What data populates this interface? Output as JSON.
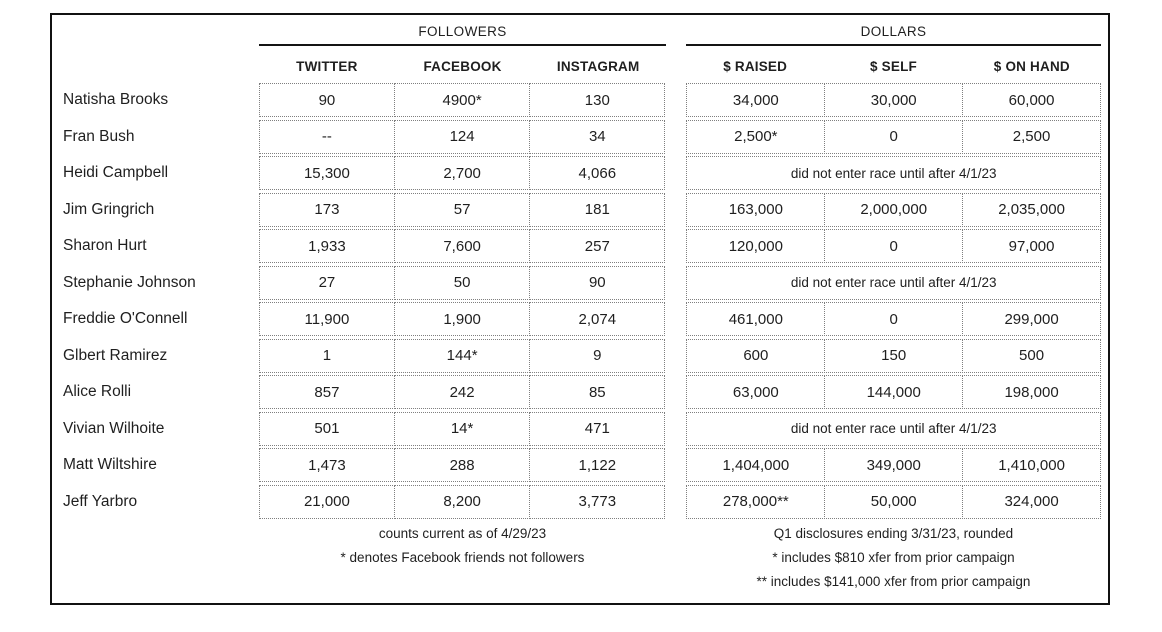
{
  "table": {
    "groups": {
      "followers": "FOLLOWERS",
      "dollars": "DOLLARS"
    },
    "columns": {
      "twitter": "TWITTER",
      "facebook": "FACEBOOK",
      "instagram": "INSTAGRAM",
      "raised": "$ RAISED",
      "self": "$ SELF",
      "on_hand": "$ ON HAND"
    },
    "rows": [
      {
        "name": "Natisha Brooks",
        "twitter": "90",
        "facebook": "4900*",
        "instagram": "130",
        "raised": "34,000",
        "self": "30,000",
        "on_hand": "60,000"
      },
      {
        "name": "Fran Bush",
        "twitter": "--",
        "facebook": "124",
        "instagram": "34",
        "raised": "2,500*",
        "self": "0",
        "on_hand": "2,500"
      },
      {
        "name": "Heidi Campbell",
        "twitter": "15,300",
        "facebook": "2,700",
        "instagram": "4,066",
        "dollars_note": "did not enter race until after 4/1/23"
      },
      {
        "name": "Jim Gringrich",
        "twitter": "173",
        "facebook": "57",
        "instagram": "181",
        "raised": "163,000",
        "self": "2,000,000",
        "on_hand": "2,035,000"
      },
      {
        "name": "Sharon Hurt",
        "twitter": "1,933",
        "facebook": "7,600",
        "instagram": "257",
        "raised": "120,000",
        "self": "0",
        "on_hand": "97,000"
      },
      {
        "name": "Stephanie Johnson",
        "twitter": "27",
        "facebook": "50",
        "instagram": "90",
        "dollars_note": "did not enter race until after 4/1/23"
      },
      {
        "name": "Freddie O'Connell",
        "twitter": "11,900",
        "facebook": "1,900",
        "instagram": "2,074",
        "raised": "461,000",
        "self": "0",
        "on_hand": "299,000"
      },
      {
        "name": "Glbert Ramirez",
        "twitter": "1",
        "facebook": "144*",
        "instagram": "9",
        "raised": "600",
        "self": "150",
        "on_hand": "500"
      },
      {
        "name": "Alice Rolli",
        "twitter": "857",
        "facebook": "242",
        "instagram": "85",
        "raised": "63,000",
        "self": "144,000",
        "on_hand": "198,000"
      },
      {
        "name": "Vivian Wilhoite",
        "twitter": "501",
        "facebook": "14*",
        "instagram": "471",
        "dollars_note": "did not enter race until after 4/1/23"
      },
      {
        "name": "Matt Wiltshire",
        "twitter": "1,473",
        "facebook": "288",
        "instagram": "1,122",
        "raised": "1,404,000",
        "self": "349,000",
        "on_hand": "1,410,000"
      },
      {
        "name": "Jeff Yarbro",
        "twitter": "21,000",
        "facebook": "8,200",
        "instagram": "3,773",
        "raised": "278,000**",
        "self": "50,000",
        "on_hand": "324,000"
      }
    ],
    "followers_notes": [
      "counts current as of 4/29/23",
      "* denotes Facebook friends not followers"
    ],
    "dollars_notes": [
      "Q1 disclosures ending 3/31/23, rounded",
      "* includes $810 xfer from prior campaign",
      "** includes $141,000 xfer from prior campaign"
    ]
  },
  "colors": {
    "text": "#1f1f1f",
    "cell_border": "#7f7f7f",
    "outer_border": "#111111",
    "background": "#ffffff"
  }
}
